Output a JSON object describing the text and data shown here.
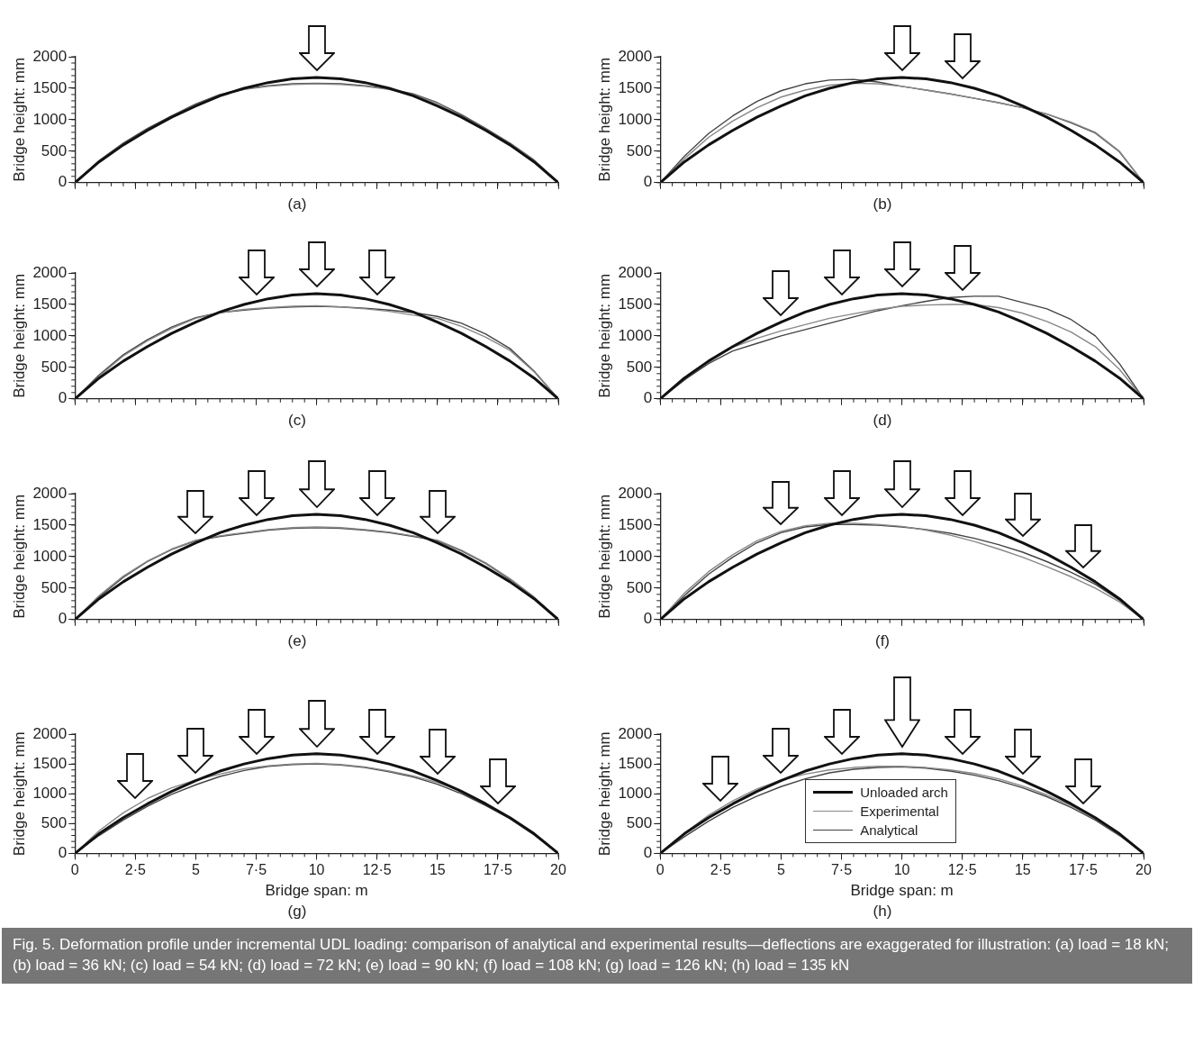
{
  "chart_data": [
    {
      "type": "line",
      "title": "(a)",
      "ylabel": "Bridge height: mm",
      "xlim": [
        0,
        20
      ],
      "ylim": [
        0,
        2000
      ],
      "yticks": [
        0,
        500,
        1000,
        1500,
        2000
      ],
      "xticks": [
        0,
        2.5,
        5,
        7.5,
        10,
        12.5,
        15,
        17.5,
        20
      ],
      "tick_labels": "y",
      "x": [
        0,
        1,
        2,
        3,
        4,
        5,
        6,
        7,
        8,
        9,
        10,
        11,
        12,
        13,
        14,
        15,
        16,
        17,
        18,
        19,
        20
      ],
      "series": [
        {
          "color": "#111111",
          "values": [
            0,
            330,
            600,
            830,
            1040,
            1220,
            1380,
            1500,
            1590,
            1650,
            1670,
            1650,
            1590,
            1500,
            1380,
            1220,
            1040,
            830,
            600,
            330,
            0
          ]
        },
        {
          "color": "#888888",
          "values": [
            0,
            340,
            620,
            840,
            1050,
            1240,
            1390,
            1480,
            1530,
            1560,
            1570,
            1560,
            1530,
            1480,
            1400,
            1260,
            1060,
            850,
            620,
            360,
            0
          ]
        },
        {
          "color": "#444444",
          "values": [
            0,
            350,
            630,
            860,
            1060,
            1250,
            1400,
            1490,
            1540,
            1570,
            1580,
            1570,
            1540,
            1490,
            1410,
            1270,
            1080,
            860,
            630,
            360,
            0
          ]
        }
      ]
    },
    {
      "type": "line",
      "title": "(b)",
      "ylabel": "Bridge height: mm",
      "xlim": [
        0,
        20
      ],
      "ylim": [
        0,
        2000
      ],
      "yticks": [
        0,
        500,
        1000,
        1500,
        2000
      ],
      "xticks": [
        0,
        2.5,
        5,
        7.5,
        10,
        12.5,
        15,
        17.5,
        20
      ],
      "tick_labels": "y",
      "x": [
        0,
        1,
        2,
        3,
        4,
        5,
        6,
        7,
        8,
        9,
        10,
        11,
        12,
        13,
        14,
        15,
        16,
        17,
        18,
        19,
        20
      ],
      "series": [
        {
          "color": "#111111",
          "values": [
            0,
            330,
            600,
            830,
            1040,
            1220,
            1380,
            1500,
            1590,
            1650,
            1670,
            1650,
            1590,
            1500,
            1380,
            1220,
            1040,
            830,
            600,
            330,
            0
          ]
        },
        {
          "color": "#888888",
          "values": [
            0,
            380,
            720,
            980,
            1190,
            1360,
            1470,
            1550,
            1580,
            1570,
            1530,
            1470,
            1410,
            1340,
            1270,
            1190,
            1090,
            960,
            800,
            500,
            0
          ]
        },
        {
          "color": "#444444",
          "values": [
            0,
            420,
            780,
            1060,
            1290,
            1460,
            1570,
            1630,
            1640,
            1600,
            1530,
            1470,
            1410,
            1340,
            1270,
            1190,
            1090,
            950,
            790,
            490,
            0
          ]
        }
      ]
    },
    {
      "type": "line",
      "title": "(c)",
      "ylabel": "Bridge height: mm",
      "xlim": [
        0,
        20
      ],
      "ylim": [
        0,
        2000
      ],
      "yticks": [
        0,
        500,
        1000,
        1500,
        2000
      ],
      "xticks": [
        0,
        2.5,
        5,
        7.5,
        10,
        12.5,
        15,
        17.5,
        20
      ],
      "tick_labels": "y",
      "x": [
        0,
        1,
        2,
        3,
        4,
        5,
        6,
        7,
        8,
        9,
        10,
        11,
        12,
        13,
        14,
        15,
        16,
        17,
        18,
        19,
        20
      ],
      "series": [
        {
          "color": "#111111",
          "values": [
            0,
            330,
            600,
            830,
            1040,
            1220,
            1380,
            1500,
            1590,
            1650,
            1670,
            1650,
            1590,
            1500,
            1380,
            1220,
            1040,
            830,
            600,
            330,
            0
          ]
        },
        {
          "color": "#888888",
          "values": [
            0,
            360,
            680,
            920,
            1120,
            1280,
            1370,
            1420,
            1450,
            1470,
            1480,
            1460,
            1430,
            1390,
            1330,
            1280,
            1150,
            980,
            770,
            430,
            0
          ]
        },
        {
          "color": "#444444",
          "values": [
            0,
            380,
            700,
            940,
            1140,
            1290,
            1370,
            1410,
            1440,
            1460,
            1470,
            1460,
            1440,
            1410,
            1370,
            1310,
            1200,
            1030,
            800,
            440,
            0
          ]
        }
      ]
    },
    {
      "type": "line",
      "title": "(d)",
      "ylabel": "Bridge height: mm",
      "xlim": [
        0,
        20
      ],
      "ylim": [
        0,
        2000
      ],
      "yticks": [
        0,
        500,
        1000,
        1500,
        2000
      ],
      "xticks": [
        0,
        2.5,
        5,
        7.5,
        10,
        12.5,
        15,
        17.5,
        20
      ],
      "tick_labels": "y",
      "x": [
        0,
        1,
        2,
        3,
        4,
        5,
        6,
        7,
        8,
        9,
        10,
        11,
        12,
        13,
        14,
        15,
        16,
        17,
        18,
        19,
        20
      ],
      "series": [
        {
          "color": "#111111",
          "values": [
            0,
            330,
            600,
            830,
            1040,
            1220,
            1380,
            1500,
            1590,
            1650,
            1670,
            1650,
            1590,
            1500,
            1380,
            1220,
            1040,
            830,
            600,
            330,
            0
          ]
        },
        {
          "color": "#888888",
          "values": [
            0,
            320,
            600,
            820,
            960,
            1080,
            1180,
            1280,
            1350,
            1420,
            1470,
            1490,
            1500,
            1500,
            1450,
            1360,
            1230,
            1060,
            830,
            470,
            0
          ]
        },
        {
          "color": "#444444",
          "values": [
            0,
            300,
            560,
            760,
            880,
            1000,
            1100,
            1200,
            1300,
            1400,
            1480,
            1550,
            1610,
            1630,
            1630,
            1530,
            1430,
            1260,
            1000,
            560,
            0
          ]
        }
      ]
    },
    {
      "type": "line",
      "title": "(e)",
      "ylabel": "Bridge height: mm",
      "xlim": [
        0,
        20
      ],
      "ylim": [
        0,
        2000
      ],
      "yticks": [
        0,
        500,
        1000,
        1500,
        2000
      ],
      "xticks": [
        0,
        2.5,
        5,
        7.5,
        10,
        12.5,
        15,
        17.5,
        20
      ],
      "tick_labels": "y",
      "x": [
        0,
        1,
        2,
        3,
        4,
        5,
        6,
        7,
        8,
        9,
        10,
        11,
        12,
        13,
        14,
        15,
        16,
        17,
        18,
        19,
        20
      ],
      "series": [
        {
          "color": "#111111",
          "values": [
            0,
            330,
            600,
            830,
            1040,
            1220,
            1380,
            1500,
            1590,
            1650,
            1670,
            1650,
            1590,
            1500,
            1380,
            1220,
            1040,
            830,
            600,
            330,
            0
          ]
        },
        {
          "color": "#888888",
          "values": [
            0,
            380,
            690,
            930,
            1120,
            1260,
            1330,
            1380,
            1430,
            1460,
            1470,
            1460,
            1430,
            1390,
            1330,
            1260,
            1100,
            900,
            650,
            360,
            0
          ]
        },
        {
          "color": "#444444",
          "values": [
            0,
            360,
            670,
            920,
            1110,
            1250,
            1320,
            1370,
            1420,
            1450,
            1460,
            1450,
            1420,
            1380,
            1320,
            1250,
            1090,
            890,
            640,
            350,
            0
          ]
        }
      ]
    },
    {
      "type": "line",
      "title": "(f)",
      "ylabel": "Bridge height: mm",
      "xlim": [
        0,
        20
      ],
      "ylim": [
        0,
        2000
      ],
      "yticks": [
        0,
        500,
        1000,
        1500,
        2000
      ],
      "xticks": [
        0,
        2.5,
        5,
        7.5,
        10,
        12.5,
        15,
        17.5,
        20
      ],
      "tick_labels": "y",
      "x": [
        0,
        1,
        2,
        3,
        4,
        5,
        6,
        7,
        8,
        9,
        10,
        11,
        12,
        13,
        14,
        15,
        16,
        17,
        18,
        19,
        20
      ],
      "series": [
        {
          "color": "#111111",
          "values": [
            0,
            330,
            600,
            830,
            1040,
            1220,
            1380,
            1500,
            1590,
            1650,
            1670,
            1650,
            1590,
            1500,
            1380,
            1220,
            1040,
            830,
            600,
            330,
            0
          ]
        },
        {
          "color": "#888888",
          "values": [
            0,
            420,
            760,
            1030,
            1250,
            1400,
            1490,
            1530,
            1530,
            1510,
            1480,
            1420,
            1340,
            1240,
            1120,
            990,
            840,
            680,
            500,
            280,
            0
          ]
        },
        {
          "color": "#444444",
          "values": [
            0,
            380,
            720,
            990,
            1220,
            1380,
            1470,
            1510,
            1510,
            1500,
            1470,
            1430,
            1370,
            1290,
            1190,
            1070,
            920,
            750,
            560,
            310,
            0
          ]
        }
      ]
    },
    {
      "type": "line",
      "title": "(g)",
      "xlabel": "Bridge span: m",
      "ylabel": "Bridge height: mm",
      "xlim": [
        0,
        20
      ],
      "ylim": [
        0,
        2000
      ],
      "yticks": [
        0,
        500,
        1000,
        1500,
        2000
      ],
      "xticks": [
        0,
        {
          "value": 2.5,
          "label": "2·5"
        },
        5,
        {
          "value": 7.5,
          "label": "7·5"
        },
        10,
        {
          "value": 12.5,
          "label": "12·5"
        },
        15,
        {
          "value": 17.5,
          "label": "17·5"
        },
        20
      ],
      "x": [
        0,
        1,
        2,
        3,
        4,
        5,
        6,
        7,
        8,
        9,
        10,
        11,
        12,
        13,
        14,
        15,
        16,
        17,
        18,
        19,
        20
      ],
      "series": [
        {
          "color": "#111111",
          "values": [
            0,
            330,
            600,
            830,
            1040,
            1220,
            1380,
            1500,
            1590,
            1650,
            1670,
            1650,
            1590,
            1500,
            1380,
            1220,
            1040,
            830,
            600,
            330,
            0
          ]
        },
        {
          "color": "#888888",
          "values": [
            0,
            380,
            680,
            920,
            1100,
            1230,
            1330,
            1420,
            1470,
            1500,
            1510,
            1490,
            1450,
            1380,
            1300,
            1190,
            1040,
            840,
            600,
            320,
            0
          ]
        },
        {
          "color": "#444444",
          "values": [
            0,
            300,
            560,
            790,
            990,
            1150,
            1290,
            1390,
            1460,
            1490,
            1500,
            1480,
            1440,
            1370,
            1280,
            1160,
            1000,
            800,
            580,
            310,
            0
          ]
        }
      ]
    },
    {
      "type": "line",
      "title": "(h)",
      "xlabel": "Bridge span: m",
      "ylabel": "Bridge height: mm",
      "xlim": [
        0,
        20
      ],
      "ylim": [
        0,
        2000
      ],
      "yticks": [
        0,
        500,
        1000,
        1500,
        2000
      ],
      "xticks": [
        0,
        {
          "value": 2.5,
          "label": "2·5"
        },
        5,
        {
          "value": 7.5,
          "label": "7·5"
        },
        10,
        {
          "value": 12.5,
          "label": "12·5"
        },
        15,
        {
          "value": 17.5,
          "label": "17·5"
        },
        20
      ],
      "legend": "bottom",
      "x": [
        0,
        1,
        2,
        3,
        4,
        5,
        6,
        7,
        8,
        9,
        10,
        11,
        12,
        13,
        14,
        15,
        16,
        17,
        18,
        19,
        20
      ],
      "series": [
        {
          "name": "Unloaded arch",
          "color": "#111111",
          "values": [
            0,
            330,
            600,
            830,
            1040,
            1220,
            1380,
            1500,
            1590,
            1650,
            1670,
            1650,
            1590,
            1500,
            1380,
            1220,
            1040,
            830,
            600,
            330,
            0
          ]
        },
        {
          "name": "Experimental",
          "color": "#888888",
          "values": [
            0,
            340,
            640,
            880,
            1080,
            1230,
            1330,
            1400,
            1440,
            1460,
            1460,
            1440,
            1400,
            1340,
            1250,
            1130,
            980,
            800,
            580,
            310,
            0
          ]
        },
        {
          "name": "Analytical",
          "color": "#444444",
          "values": [
            0,
            280,
            540,
            770,
            960,
            1120,
            1250,
            1350,
            1410,
            1440,
            1450,
            1430,
            1380,
            1310,
            1220,
            1100,
            950,
            770,
            560,
            300,
            0
          ]
        }
      ],
      "annotations": [
        "Fig. 5.  Deformation profile under incremental UDL loading: comparison of analytical and experimental results—deflections are exaggerated for illustration: (a) load = 18 kN; (b) load = 36 kN; (c) load = 54 kN; (d) load = 72 kN; (e) load = 90 kN; (f) load = 108 kN; (g) load = 126 kN; (h) load = 135 kN"
      ]
    }
  ]
}
